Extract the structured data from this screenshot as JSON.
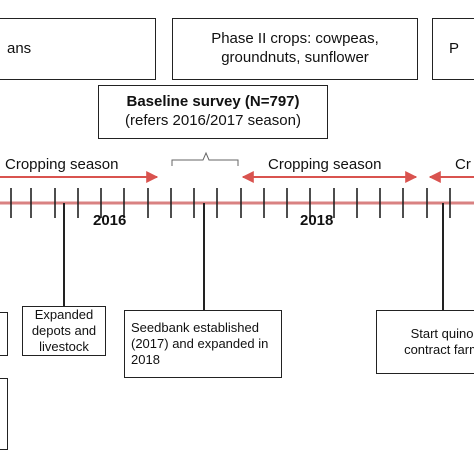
{
  "boxes": {
    "top_left_text": "ans",
    "phase2_line1": "Phase II crops: cowpeas,",
    "phase2_line2": "groundnuts, sunflower",
    "top_right_text": "P",
    "baseline_title": "Baseline survey (N=797)",
    "baseline_sub": "(refers 2016/2017 season)",
    "expanded_text": "Expanded depots and livestock",
    "seedbank_text": "Seedbank established (2017) and expanded in 2018",
    "quinoa_line1": "Start quino",
    "quinoa_line2": "contract farm"
  },
  "timeline": {
    "season_labels": [
      "Cropping season",
      "Cropping season",
      "Cr"
    ],
    "years": [
      "2016",
      "2018"
    ]
  },
  "colors": {
    "timeline": "#d98282",
    "arrow": "#d9534f",
    "ink": "#222222"
  }
}
